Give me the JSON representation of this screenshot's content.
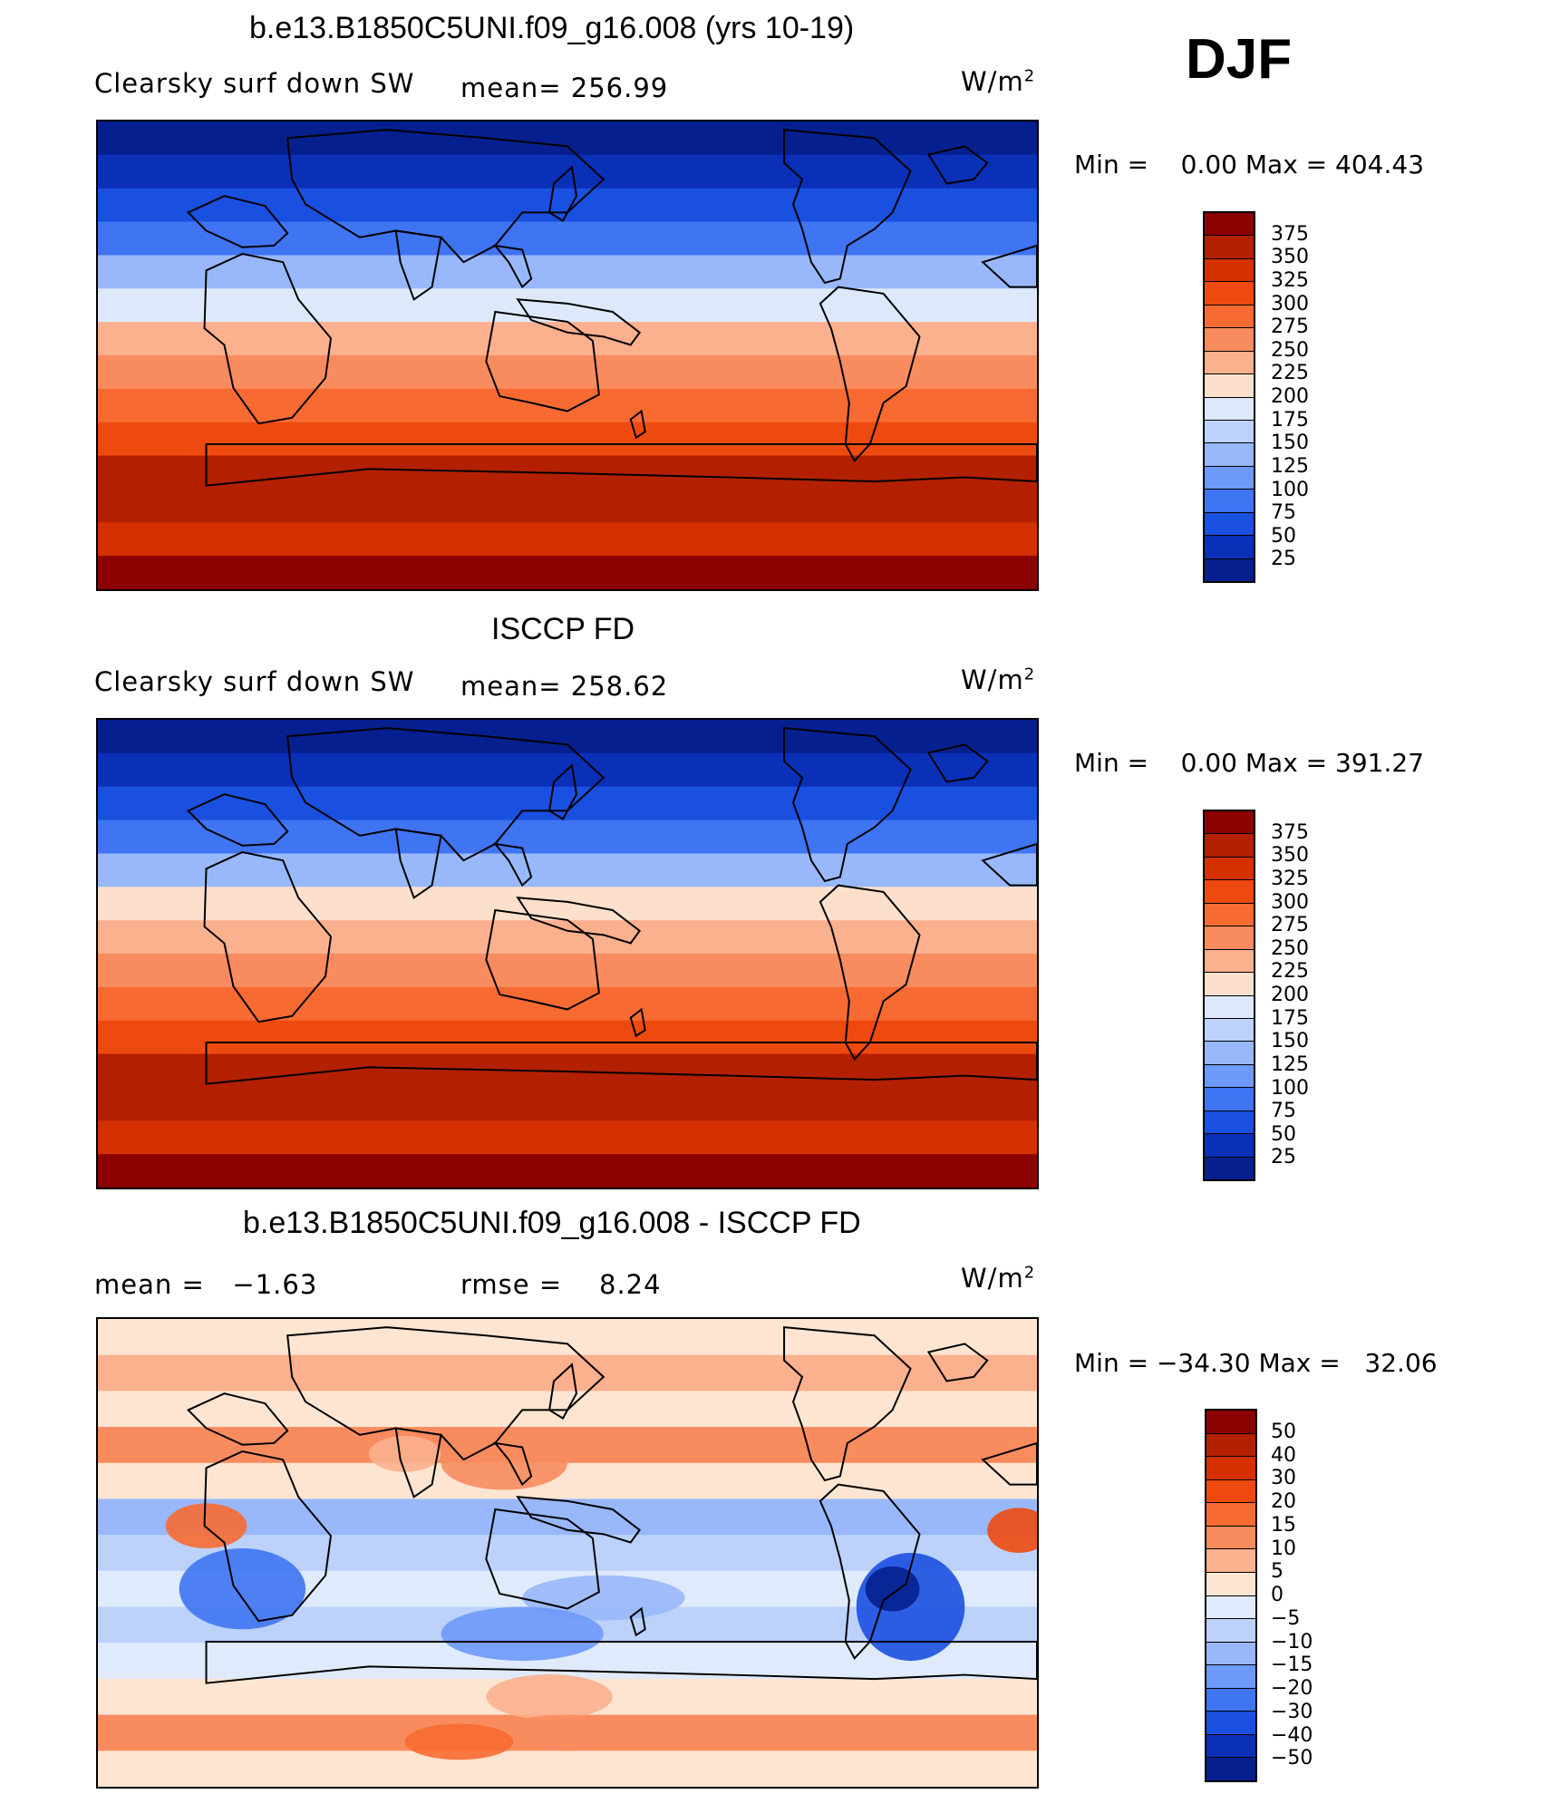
{
  "season": "DJF",
  "unit_label": "W/m",
  "unit_power": "2",
  "panels": [
    {
      "title": "b.e13.B1850C5UNI.f09_g16.008 (yrs 10-19)",
      "left_label": "Clearsky surf down SW",
      "mid_label": "mean= 256.99",
      "minmax": "Min =    0.00 Max = 404.43"
    },
    {
      "title": "ISCCP FD",
      "left_label": "Clearsky surf down SW",
      "mid_label": "mean= 258.62",
      "minmax": "Min =    0.00 Max = 391.27"
    },
    {
      "title": "b.e13.B1850C5UNI.f09_g16.008 - ISCCP FD",
      "left_label": "mean =   −1.63",
      "mid_label": "rmse =    8.24",
      "minmax": "Min = −34.30 Max =   32.06"
    }
  ],
  "colorbars": {
    "abs": {
      "labels": [
        "375",
        "350",
        "325",
        "300",
        "275",
        "250",
        "225",
        "200",
        "175",
        "150",
        "125",
        "100",
        "75",
        "50",
        "25"
      ],
      "colors": [
        "#8b0000",
        "#b22000",
        "#d43000",
        "#ee4a10",
        "#f76b32",
        "#f88c5e",
        "#fbb08e",
        "#fde0cc",
        "#dde9fa",
        "#bcd2fb",
        "#98b8fb",
        "#6d99f8",
        "#3f74f2",
        "#1a50e0",
        "#0a30b8",
        "#05208e"
      ]
    },
    "diff": {
      "labels": [
        "50",
        "40",
        "30",
        "20",
        "15",
        "10",
        "5",
        "0",
        "−5",
        "−10",
        "−15",
        "−20",
        "−30",
        "−40",
        "−50"
      ],
      "colors": [
        "#8b0000",
        "#b22000",
        "#d43000",
        "#ee4a10",
        "#f76b32",
        "#f88c5e",
        "#fbb08e",
        "#fde5d2",
        "#dfeafc",
        "#bcd2fb",
        "#98b8fb",
        "#6d99f8",
        "#3f74f2",
        "#1a50e0",
        "#0a30b8",
        "#05208e"
      ]
    }
  },
  "maps": {
    "model_bands": [
      "#05208e",
      "#0a30b8",
      "#1a50e0",
      "#3f74f2",
      "#98b8fb",
      "#dde9fa",
      "#fbb08e",
      "#f88c5e",
      "#f76b32",
      "#ee4a10",
      "#b22000",
      "#b22000",
      "#d43000",
      "#8b0000"
    ],
    "obs_bands": [
      "#05208e",
      "#0a30b8",
      "#1a50e0",
      "#3f74f2",
      "#98b8fb",
      "#fde0cc",
      "#fbb08e",
      "#f88c5e",
      "#f76b32",
      "#ee4a10",
      "#b22000",
      "#b22000",
      "#d43000",
      "#8b0000"
    ],
    "diff_bands": [
      "#fde5d2",
      "#fbb08e",
      "#fde5d2",
      "#f88c5e",
      "#fde5d2",
      "#98b8fb",
      "#bcd2fb",
      "#dfeafc",
      "#bcd2fb",
      "#dfeafc",
      "#fde5d2",
      "#f88c5e",
      "#fde5d2"
    ]
  }
}
